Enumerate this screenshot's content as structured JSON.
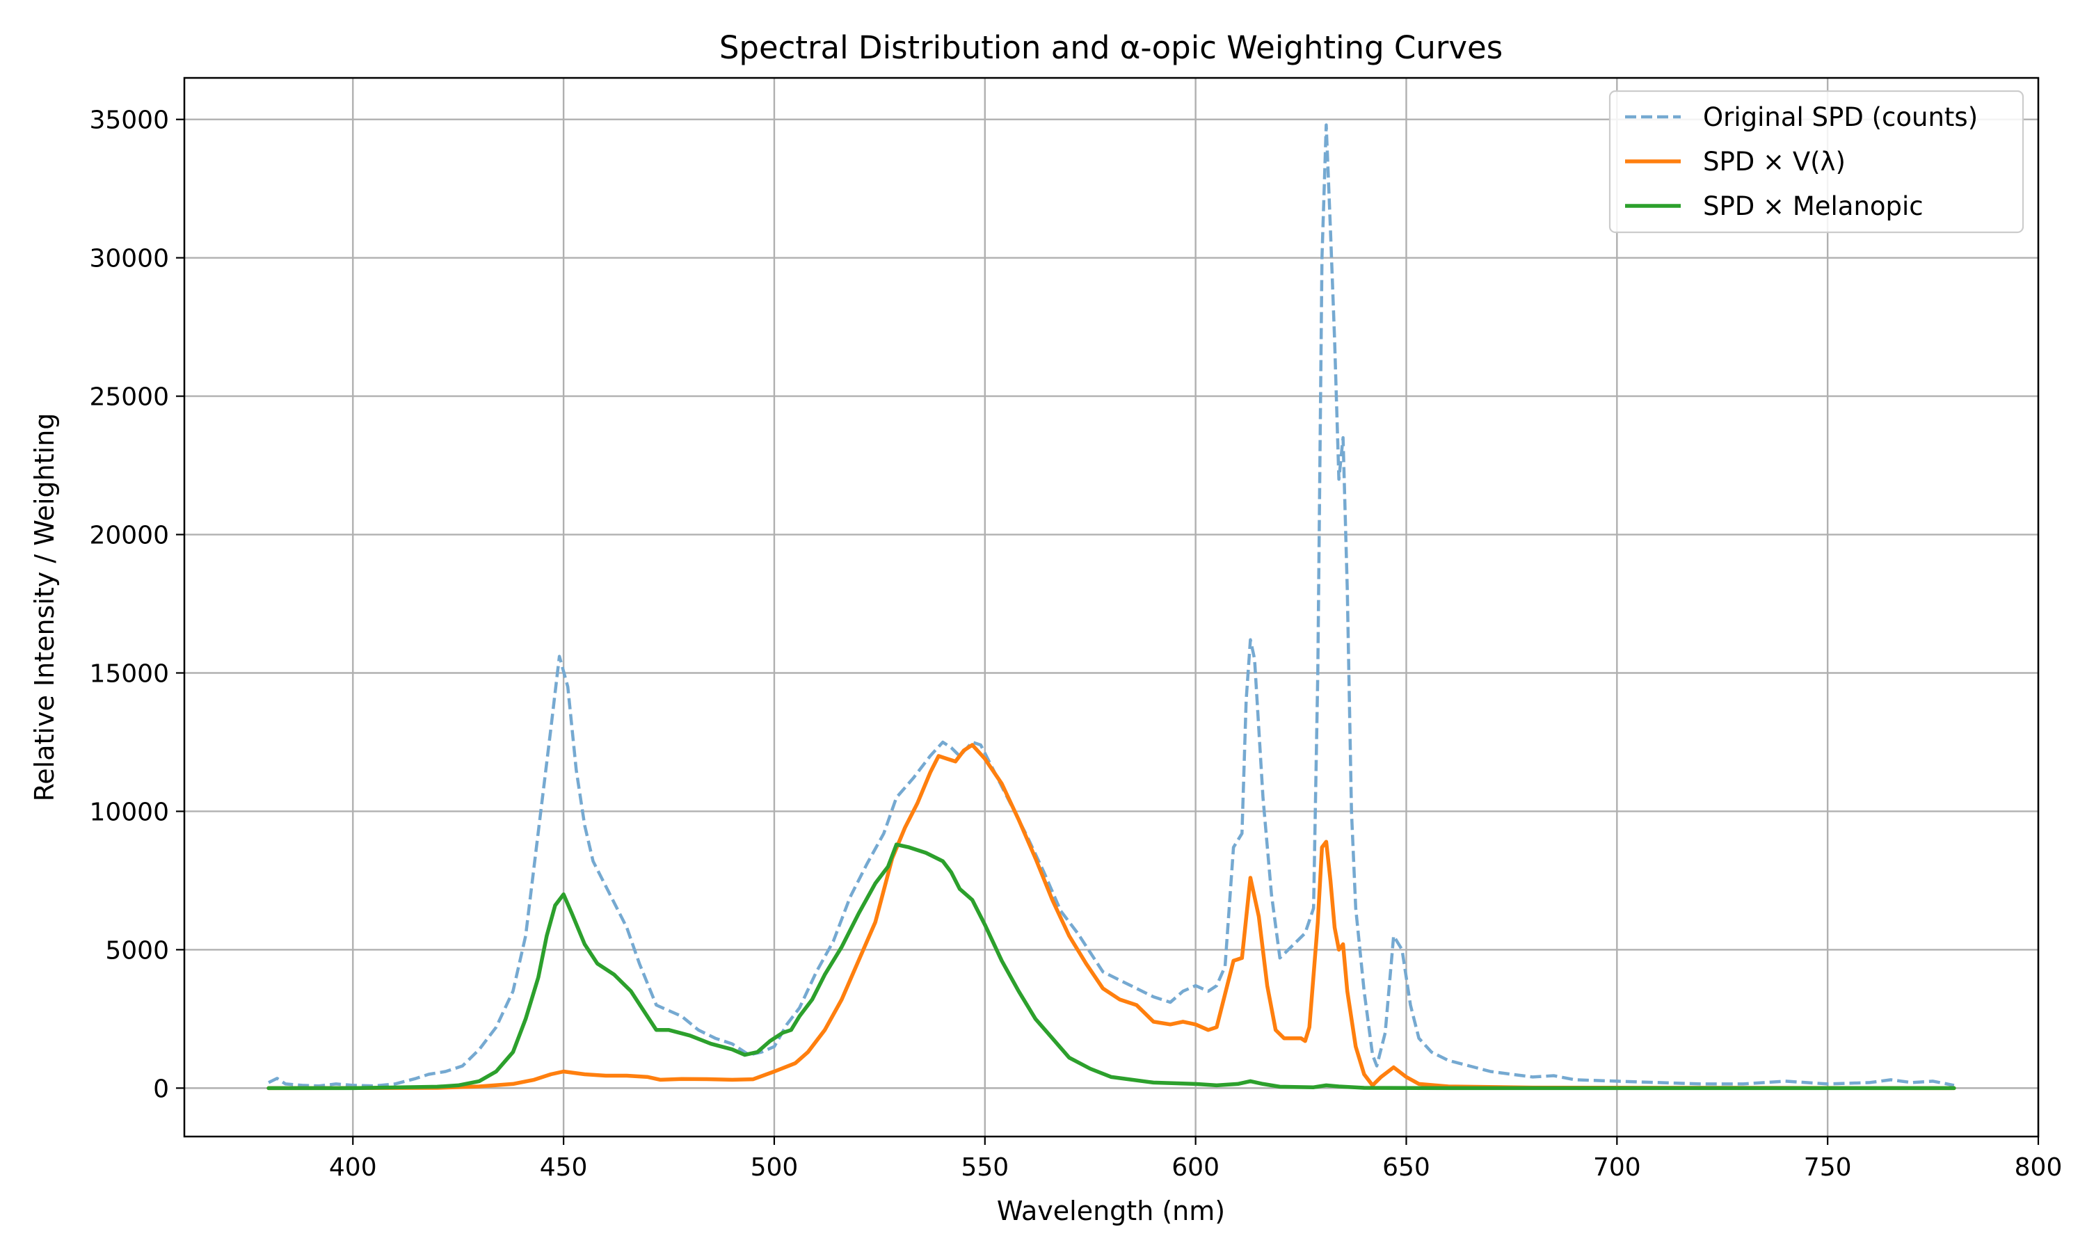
{
  "chart_data": {
    "type": "line",
    "title": "Spectral Distribution and α-opic Weighting Curves",
    "xlabel": "Wavelength (nm)",
    "ylabel": "Relative Intensity / Weighting",
    "xlim": [
      360,
      800
    ],
    "ylim": [
      -1750,
      36500
    ],
    "xticks": [
      400,
      450,
      500,
      550,
      600,
      650,
      700,
      750,
      800
    ],
    "yticks": [
      0,
      5000,
      10000,
      15000,
      20000,
      25000,
      30000,
      35000
    ],
    "grid": true,
    "legend_position": "top-right",
    "series": [
      {
        "name": "Original SPD (counts)",
        "color": "#75a9d1",
        "style": "dashed",
        "points": [
          [
            380,
            200
          ],
          [
            382,
            350
          ],
          [
            384,
            150
          ],
          [
            388,
            100
          ],
          [
            392,
            80
          ],
          [
            396,
            150
          ],
          [
            400,
            100
          ],
          [
            405,
            80
          ],
          [
            410,
            150
          ],
          [
            415,
            350
          ],
          [
            418,
            500
          ],
          [
            422,
            600
          ],
          [
            426,
            800
          ],
          [
            430,
            1400
          ],
          [
            434,
            2200
          ],
          [
            438,
            3500
          ],
          [
            441,
            5500
          ],
          [
            443,
            8000
          ],
          [
            445,
            10500
          ],
          [
            447,
            13000
          ],
          [
            449,
            15600
          ],
          [
            451,
            14500
          ],
          [
            453,
            11500
          ],
          [
            455,
            9500
          ],
          [
            457,
            8200
          ],
          [
            460,
            7300
          ],
          [
            465,
            5800
          ],
          [
            468,
            4500
          ],
          [
            472,
            3000
          ],
          [
            475,
            2800
          ],
          [
            478,
            2600
          ],
          [
            482,
            2100
          ],
          [
            486,
            1800
          ],
          [
            490,
            1600
          ],
          [
            494,
            1200
          ],
          [
            497,
            1300
          ],
          [
            500,
            1500
          ],
          [
            503,
            2300
          ],
          [
            506,
            2900
          ],
          [
            510,
            4200
          ],
          [
            514,
            5300
          ],
          [
            518,
            6900
          ],
          [
            522,
            8100
          ],
          [
            526,
            9200
          ],
          [
            529,
            10500
          ],
          [
            533,
            11200
          ],
          [
            537,
            12000
          ],
          [
            540,
            12500
          ],
          [
            542,
            12300
          ],
          [
            544,
            12000
          ],
          [
            547,
            12500
          ],
          [
            549,
            12400
          ],
          [
            552,
            11500
          ],
          [
            556,
            10300
          ],
          [
            560,
            9100
          ],
          [
            564,
            7800
          ],
          [
            568,
            6400
          ],
          [
            572,
            5600
          ],
          [
            575,
            4900
          ],
          [
            578,
            4200
          ],
          [
            582,
            3900
          ],
          [
            586,
            3600
          ],
          [
            590,
            3300
          ],
          [
            594,
            3100
          ],
          [
            597,
            3500
          ],
          [
            600,
            3700
          ],
          [
            603,
            3500
          ],
          [
            605,
            3700
          ],
          [
            607,
            4400
          ],
          [
            609,
            8700
          ],
          [
            611,
            9200
          ],
          [
            612,
            14000
          ],
          [
            613,
            16200
          ],
          [
            614,
            15500
          ],
          [
            616,
            10500
          ],
          [
            618,
            7000
          ],
          [
            620,
            4700
          ],
          [
            622,
            5000
          ],
          [
            624,
            5300
          ],
          [
            626,
            5600
          ],
          [
            628,
            6500
          ],
          [
            629,
            15000
          ],
          [
            630,
            30000
          ],
          [
            631,
            34800
          ],
          [
            632,
            31000
          ],
          [
            633,
            27000
          ],
          [
            634,
            22000
          ],
          [
            635,
            23500
          ],
          [
            636,
            18000
          ],
          [
            637,
            10000
          ],
          [
            638,
            6500
          ],
          [
            640,
            3500
          ],
          [
            642,
            1200
          ],
          [
            643,
            800
          ],
          [
            645,
            2000
          ],
          [
            647,
            5500
          ],
          [
            649,
            5000
          ],
          [
            651,
            3000
          ],
          [
            653,
            1800
          ],
          [
            656,
            1300
          ],
          [
            660,
            1000
          ],
          [
            665,
            800
          ],
          [
            670,
            600
          ],
          [
            675,
            500
          ],
          [
            680,
            400
          ],
          [
            685,
            450
          ],
          [
            690,
            300
          ],
          [
            700,
            250
          ],
          [
            710,
            200
          ],
          [
            720,
            150
          ],
          [
            730,
            150
          ],
          [
            740,
            250
          ],
          [
            750,
            150
          ],
          [
            760,
            200
          ],
          [
            765,
            300
          ],
          [
            770,
            200
          ],
          [
            775,
            250
          ],
          [
            780,
            100
          ]
        ]
      },
      {
        "name": "SPD × V(λ)",
        "color": "#ff7f0e",
        "style": "solid",
        "points": [
          [
            380,
            0
          ],
          [
            420,
            10
          ],
          [
            430,
            60
          ],
          [
            438,
            150
          ],
          [
            443,
            300
          ],
          [
            447,
            500
          ],
          [
            450,
            600
          ],
          [
            455,
            500
          ],
          [
            460,
            450
          ],
          [
            465,
            450
          ],
          [
            470,
            400
          ],
          [
            473,
            300
          ],
          [
            478,
            330
          ],
          [
            485,
            320
          ],
          [
            490,
            300
          ],
          [
            495,
            320
          ],
          [
            500,
            600
          ],
          [
            505,
            900
          ],
          [
            508,
            1300
          ],
          [
            512,
            2100
          ],
          [
            516,
            3200
          ],
          [
            520,
            4600
          ],
          [
            524,
            6000
          ],
          [
            528,
            8300
          ],
          [
            531,
            9400
          ],
          [
            534,
            10300
          ],
          [
            537,
            11400
          ],
          [
            539,
            12000
          ],
          [
            541,
            11900
          ],
          [
            543,
            11800
          ],
          [
            545,
            12200
          ],
          [
            547,
            12400
          ],
          [
            550,
            11900
          ],
          [
            554,
            11000
          ],
          [
            558,
            9700
          ],
          [
            562,
            8300
          ],
          [
            566,
            6800
          ],
          [
            570,
            5500
          ],
          [
            574,
            4500
          ],
          [
            578,
            3600
          ],
          [
            582,
            3200
          ],
          [
            586,
            3000
          ],
          [
            590,
            2400
          ],
          [
            594,
            2300
          ],
          [
            597,
            2400
          ],
          [
            600,
            2300
          ],
          [
            603,
            2100
          ],
          [
            605,
            2200
          ],
          [
            607,
            3400
          ],
          [
            609,
            4600
          ],
          [
            611,
            4700
          ],
          [
            613,
            7600
          ],
          [
            615,
            6200
          ],
          [
            617,
            3700
          ],
          [
            619,
            2100
          ],
          [
            621,
            1800
          ],
          [
            623,
            1800
          ],
          [
            625,
            1800
          ],
          [
            626,
            1700
          ],
          [
            627,
            2200
          ],
          [
            629,
            6000
          ],
          [
            630,
            8700
          ],
          [
            631,
            8900
          ],
          [
            632,
            7500
          ],
          [
            633,
            5800
          ],
          [
            634,
            5000
          ],
          [
            635,
            5200
          ],
          [
            636,
            3500
          ],
          [
            638,
            1500
          ],
          [
            640,
            500
          ],
          [
            642,
            100
          ],
          [
            644,
            400
          ],
          [
            647,
            750
          ],
          [
            650,
            400
          ],
          [
            653,
            150
          ],
          [
            660,
            60
          ],
          [
            680,
            20
          ],
          [
            780,
            0
          ]
        ]
      },
      {
        "name": "SPD × Melanopic",
        "color": "#2ca02c",
        "style": "solid",
        "points": [
          [
            380,
            0
          ],
          [
            400,
            0
          ],
          [
            420,
            50
          ],
          [
            425,
            100
          ],
          [
            430,
            250
          ],
          [
            434,
            600
          ],
          [
            438,
            1300
          ],
          [
            441,
            2500
          ],
          [
            444,
            4000
          ],
          [
            446,
            5500
          ],
          [
            448,
            6600
          ],
          [
            450,
            7000
          ],
          [
            452,
            6300
          ],
          [
            455,
            5200
          ],
          [
            458,
            4500
          ],
          [
            462,
            4100
          ],
          [
            466,
            3500
          ],
          [
            469,
            2800
          ],
          [
            472,
            2100
          ],
          [
            475,
            2100
          ],
          [
            480,
            1900
          ],
          [
            485,
            1600
          ],
          [
            490,
            1400
          ],
          [
            493,
            1200
          ],
          [
            496,
            1300
          ],
          [
            499,
            1700
          ],
          [
            502,
            2000
          ],
          [
            504,
            2100
          ],
          [
            506,
            2600
          ],
          [
            509,
            3200
          ],
          [
            512,
            4100
          ],
          [
            516,
            5100
          ],
          [
            520,
            6300
          ],
          [
            524,
            7400
          ],
          [
            527,
            8000
          ],
          [
            529,
            8800
          ],
          [
            532,
            8700
          ],
          [
            536,
            8500
          ],
          [
            540,
            8200
          ],
          [
            542,
            7800
          ],
          [
            544,
            7200
          ],
          [
            547,
            6800
          ],
          [
            550,
            5900
          ],
          [
            554,
            4600
          ],
          [
            558,
            3500
          ],
          [
            562,
            2500
          ],
          [
            566,
            1800
          ],
          [
            570,
            1100
          ],
          [
            575,
            700
          ],
          [
            580,
            400
          ],
          [
            590,
            200
          ],
          [
            600,
            150
          ],
          [
            605,
            100
          ],
          [
            610,
            150
          ],
          [
            613,
            250
          ],
          [
            616,
            150
          ],
          [
            620,
            50
          ],
          [
            628,
            30
          ],
          [
            631,
            100
          ],
          [
            634,
            60
          ],
          [
            640,
            10
          ],
          [
            660,
            0
          ],
          [
            780,
            0
          ]
        ]
      }
    ]
  }
}
